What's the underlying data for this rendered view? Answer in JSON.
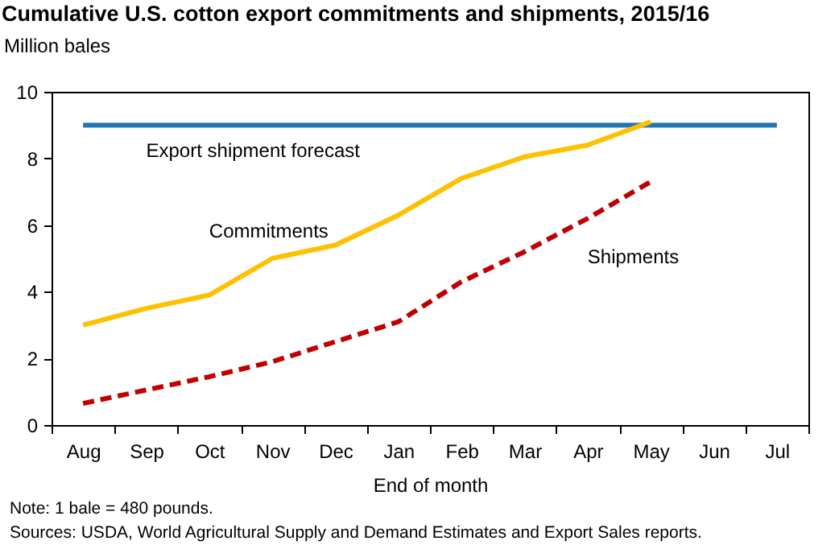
{
  "chart_data": {
    "type": "line",
    "title": "Cumulative U.S. cotton export commitments and shipments, 2015/16",
    "ylabel": "Million bales",
    "xlabel": "End of month",
    "categories": [
      "Aug",
      "Sep",
      "Oct",
      "Nov",
      "Dec",
      "Jan",
      "Feb",
      "Mar",
      "Apr",
      "May",
      "Jun",
      "Jul"
    ],
    "series": [
      {
        "name": "Export shipment  forecast",
        "color": "#1f77b4",
        "line_style": "solid",
        "values": [
          9,
          9,
          9,
          9,
          9,
          9,
          9,
          9,
          9,
          9,
          9,
          9
        ]
      },
      {
        "name": "Commitments",
        "color": "#ffc000",
        "line_style": "solid",
        "values": [
          3.0,
          3.5,
          3.9,
          5.0,
          5.4,
          6.3,
          7.4,
          8.05,
          8.4,
          9.1,
          null,
          null
        ]
      },
      {
        "name": "Shipments",
        "color": "#c00000",
        "line_style": "dashed",
        "values": [
          0.65,
          1.05,
          1.45,
          1.9,
          2.5,
          3.1,
          4.3,
          5.2,
          6.2,
          7.3,
          null,
          null
        ]
      }
    ],
    "ylim": [
      0,
      10
    ],
    "yticks": [
      0,
      2,
      4,
      6,
      8,
      10
    ],
    "grid": false,
    "legend": false,
    "annotations": [
      "Note: 1 bale = 480 pounds.",
      "Sources: USDA, World Agricultural Supply and Demand Estimates and Export Sales reports."
    ]
  }
}
